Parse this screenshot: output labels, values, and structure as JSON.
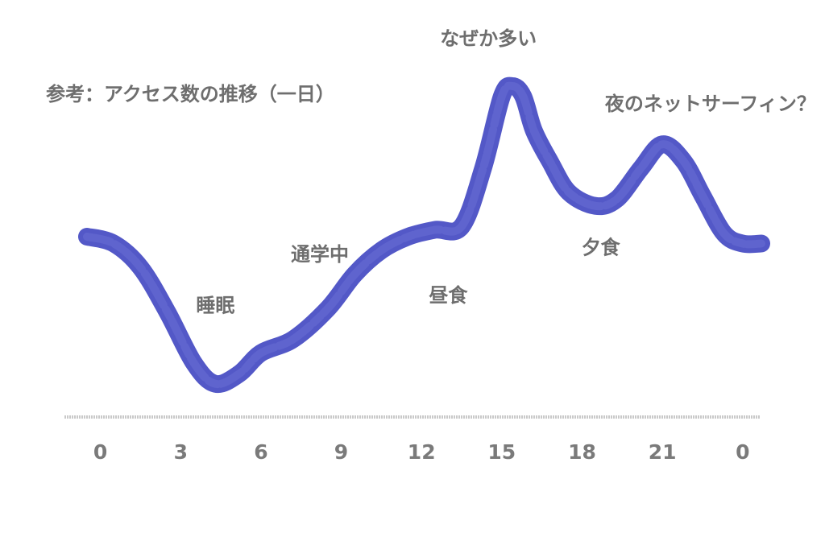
{
  "chart_data": {
    "type": "line",
    "title": "参考：アクセス数の推移（一日）",
    "xlabel": "",
    "ylabel": "",
    "x_ticks": [
      "0",
      "3",
      "6",
      "9",
      "12",
      "15",
      "18",
      "21",
      "0"
    ],
    "xlim": [
      -0.5,
      25
    ],
    "ylim": [
      0,
      100
    ],
    "grid": false,
    "legend": "none",
    "series": [
      {
        "color": "#4a4fc4",
        "x": [
          -0.5,
          0.5,
          1.5,
          2.5,
          3.5,
          4.3,
          5.2,
          6.0,
          7.2,
          8.5,
          9.5,
          10.5,
          11.5,
          12.5,
          13.5,
          14.3,
          15.0,
          15.4,
          15.8,
          16.2,
          16.8,
          17.5,
          18.5,
          19.3,
          20.2,
          21.0,
          21.8,
          22.5,
          23.3,
          24.0,
          24.7
        ],
        "y": [
          52,
          50,
          43,
          30,
          15,
          9,
          12,
          18,
          22,
          31,
          41,
          48,
          52,
          54,
          55,
          72,
          93,
          96,
          93,
          83,
          74,
          65,
          61,
          63,
          72,
          79,
          74,
          64,
          53,
          50,
          50
        ]
      }
    ],
    "annotations": [
      {
        "text": "睡眠",
        "x": 4.3,
        "y": 30
      },
      {
        "text": "通学中",
        "x": 8.2,
        "y": 45
      },
      {
        "text": "昼食",
        "x": 13.0,
        "y": 33
      },
      {
        "text": "なぜか多い",
        "x": 14.5,
        "y": 108
      },
      {
        "text": "夕食",
        "x": 18.7,
        "y": 47
      },
      {
        "text": "夜のネットサーフィン？",
        "x": 22.8,
        "y": 89
      }
    ]
  }
}
